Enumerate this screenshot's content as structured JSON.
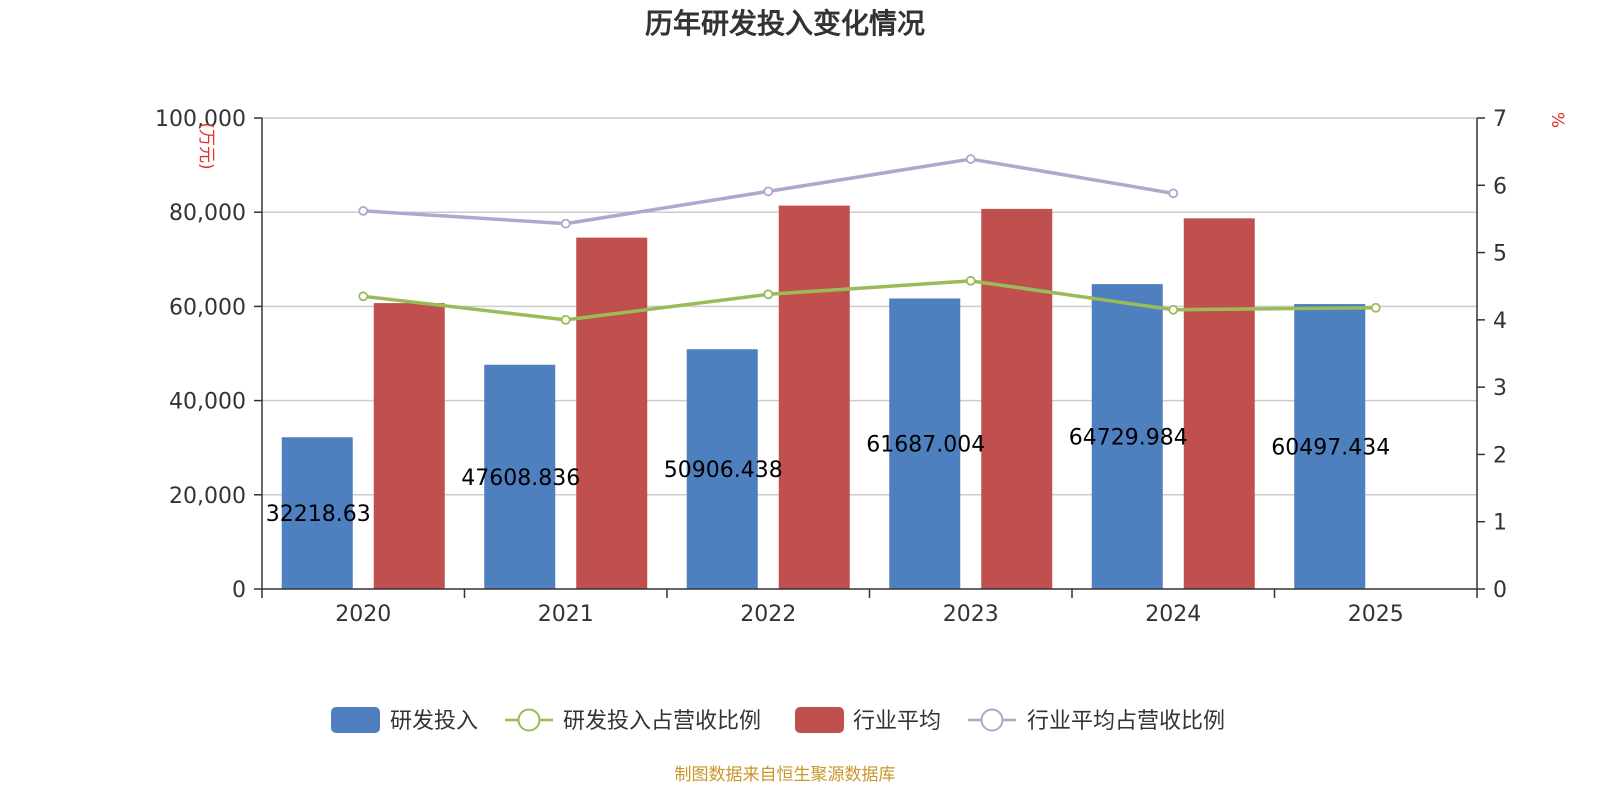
{
  "chart_data": {
    "type": "bar",
    "title": "历年研发投入变化情况",
    "categories": [
      "2020",
      "2021",
      "2022",
      "2023",
      "2024",
      "2025"
    ],
    "y_left": {
      "unit": "(万元)",
      "ylim": [
        0,
        100000
      ],
      "ticks": [
        0,
        20000,
        40000,
        60000,
        80000,
        100000
      ],
      "tick_labels": [
        "0",
        "20,000",
        "40,000",
        "60,000",
        "80,000",
        "100,000"
      ]
    },
    "y_right": {
      "unit": "%",
      "ylim": [
        0,
        7
      ],
      "ticks": [
        0,
        1,
        2,
        3,
        4,
        5,
        6,
        7
      ],
      "tick_labels": [
        "0",
        "1",
        "2",
        "3",
        "4",
        "5",
        "6",
        "7"
      ]
    },
    "series": [
      {
        "name": "研发投入",
        "type": "bar",
        "axis": "left",
        "color": "#4e7fbf",
        "values": [
          32218.63,
          47608.836,
          50906.438,
          61687.004,
          64729.984,
          60497.434
        ],
        "labels": [
          "32218.63",
          "47608.836",
          "50906.438",
          "61687.004",
          "64729.984",
          "60497.434"
        ]
      },
      {
        "name": "研发投入占营收比例",
        "type": "line",
        "axis": "right",
        "color": "#9bbb59",
        "values": [
          4.35,
          4.0,
          4.38,
          4.58,
          4.15,
          4.18
        ]
      },
      {
        "name": "行业平均",
        "type": "bar",
        "axis": "left",
        "color": "#c0504d",
        "values": [
          60700,
          74600,
          81400,
          80700,
          78700,
          null
        ]
      },
      {
        "name": "行业平均占营收比例",
        "type": "line",
        "axis": "right",
        "color": "#b3a6cd",
        "values": [
          5.62,
          5.43,
          5.91,
          6.39,
          5.88,
          null
        ]
      }
    ],
    "legend_position": "bottom",
    "grid": true
  },
  "source_note": "制图数据来自恒生聚源数据库",
  "colors": {
    "grid": "#cccccc",
    "axis": "#333333",
    "unit": "#e03030",
    "source": "#c9962a"
  }
}
